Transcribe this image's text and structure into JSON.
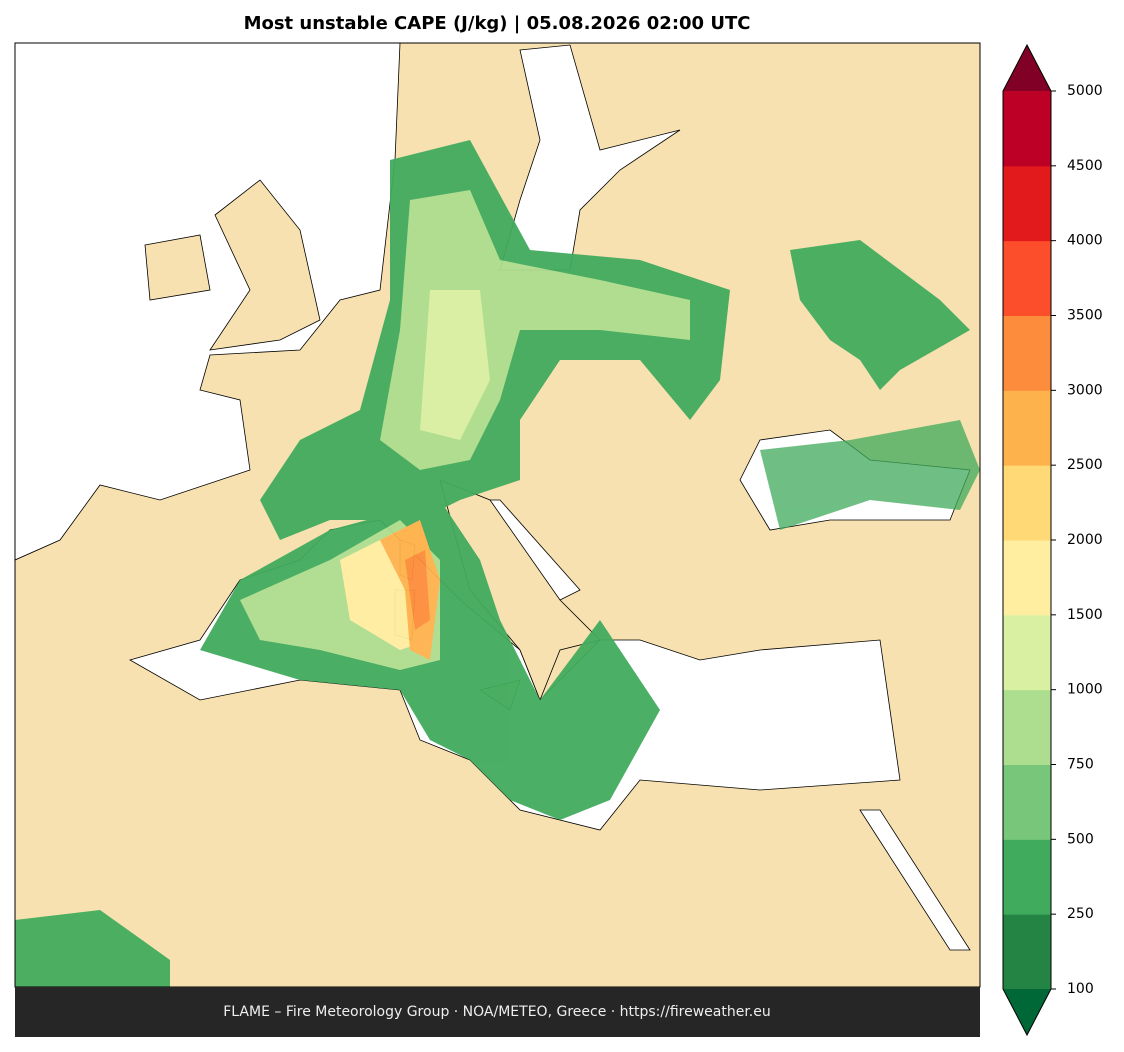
{
  "chart_data": {
    "type": "map",
    "title": "Most unstable CAPE (J/kg)  |  05.08.2026 02:00 UTC",
    "footer": "FLAME – Fire Meteorology Group · NOA/METEO, Greece · https://fireweather.eu",
    "colorbar": {
      "levels": [
        100,
        250,
        500,
        750,
        1000,
        1500,
        2000,
        2500,
        3000,
        3500,
        4000,
        4500,
        5000
      ],
      "colors": [
        "#238443",
        "#41ab5d",
        "#78c679",
        "#addd8e",
        "#d9f0a3",
        "#ffeda0",
        "#fed976",
        "#feb24c",
        "#fd8d3c",
        "#fc4e2a",
        "#e31a1c",
        "#bd0026"
      ],
      "under_color": "#006837",
      "over_color": "#800026"
    }
  }
}
